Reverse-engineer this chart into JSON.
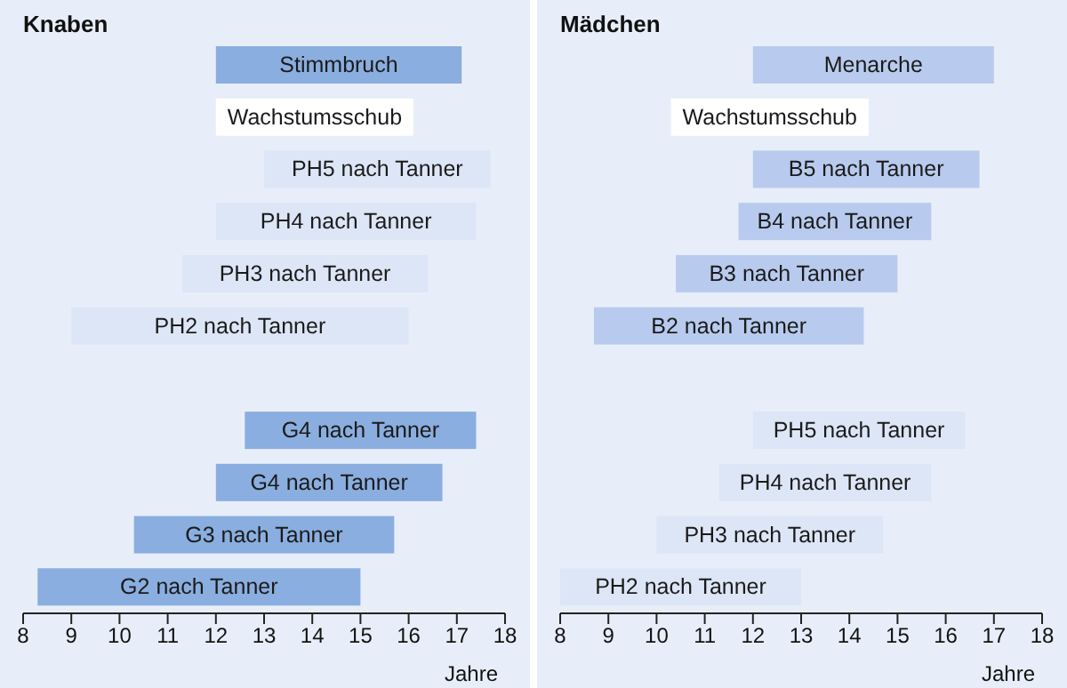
{
  "chart_data": [
    {
      "type": "bar",
      "orientation": "horizontal",
      "title": "Knaben",
      "xlabel": "Jahre",
      "categories": [
        "Stimmbruch",
        "Wachstumsschub",
        "PH5 nach Tanner",
        "PH4 nach Tanner",
        "PH3 nach Tanner",
        "PH2 nach Tanner",
        null,
        "G4 nach Tanner",
        "G4 nach Tanner",
        "G3 nach Tanner",
        "G2 nach Tanner"
      ],
      "base": [
        12.0,
        12.0,
        13.0,
        12.0,
        11.3,
        9.0,
        null,
        12.6,
        12.0,
        10.3,
        8.3
      ],
      "values": [
        5.1,
        4.1,
        4.7,
        5.4,
        5.1,
        7.0,
        null,
        4.8,
        4.7,
        5.4,
        6.7
      ],
      "colors": [
        "#8aaedf",
        "#ffffff",
        "#dce6f6",
        "#dce6f6",
        "#dce6f6",
        "#dce6f6",
        null,
        "#8aaedf",
        "#8aaedf",
        "#8aaedf",
        "#8aaedf"
      ],
      "xlim": [
        8,
        18
      ],
      "xticks": [
        8,
        9,
        10,
        11,
        12,
        13,
        14,
        15,
        16,
        17,
        18
      ],
      "grid": false,
      "legend": false
    },
    {
      "type": "bar",
      "orientation": "horizontal",
      "title": "Mädchen",
      "xlabel": "Jahre",
      "categories": [
        "Menarche",
        "Wachstumsschub",
        "B5 nach Tanner",
        "B4 nach Tanner",
        "B3 nach Tanner",
        "B2 nach Tanner",
        null,
        "PH5 nach Tanner",
        "PH4 nach Tanner",
        "PH3 nach Tanner",
        "PH2 nach Tanner"
      ],
      "base": [
        12.0,
        10.3,
        12.0,
        11.7,
        10.4,
        8.7,
        null,
        12.0,
        11.3,
        10.0,
        8.0
      ],
      "values": [
        5.0,
        4.1,
        4.7,
        4.0,
        4.6,
        5.6,
        null,
        4.4,
        4.4,
        4.7,
        5.0
      ],
      "colors": [
        "#b8cbee",
        "#ffffff",
        "#b8cbee",
        "#b8cbee",
        "#b8cbee",
        "#b8cbee",
        null,
        "#dce6f6",
        "#dce6f6",
        "#dce6f6",
        "#dce6f6"
      ],
      "xlim": [
        8,
        18
      ],
      "xticks": [
        8,
        9,
        10,
        11,
        12,
        13,
        14,
        15,
        16,
        17,
        18
      ],
      "grid": false,
      "legend": false
    }
  ]
}
